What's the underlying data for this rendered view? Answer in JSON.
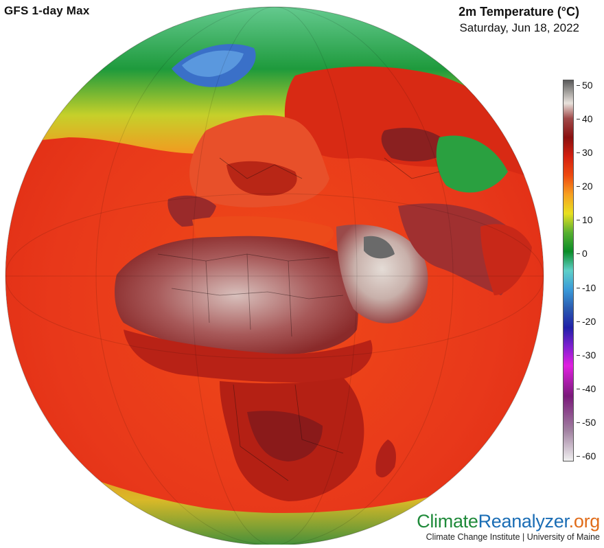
{
  "header": {
    "model_title": "GFS 1-day Max",
    "variable_title": "2m Temperature (°C)",
    "date": "Saturday, Jun 18, 2022"
  },
  "colorbar": {
    "labels": [
      "50",
      "40",
      "30",
      "20",
      "10",
      "0",
      "-10",
      "-20",
      "-30",
      "-40",
      "-50",
      "-60"
    ],
    "values": [
      50,
      40,
      30,
      20,
      10,
      0,
      -10,
      -20,
      -30,
      -40,
      -50,
      -60
    ],
    "colors": {
      "c50": "#5a5a5a",
      "c45": "#e8e2dc",
      "c40": "#a04a4a",
      "c35": "#8a1010",
      "c30": "#d42010",
      "c25": "#ee4a10",
      "c20": "#f7a020",
      "c15": "#e8e020",
      "c10": "#58b030",
      "c5": "#0a8c28",
      "c0": "#5fd0c8",
      "cm5": "#3a9ad8",
      "cm10": "#2a5ab0",
      "cm20": "#2020a8",
      "cm25": "#8020d0",
      "cm30": "#e020e0",
      "cm40": "#7a1a7a",
      "cm50": "#a080a0",
      "cm60": "#f0f0f0"
    }
  },
  "map": {
    "projection": "orthographic",
    "center_region": "Africa / Europe",
    "ocean_color": "#e83a18",
    "land_hot_color": "#8a2020",
    "desert_color": "#d8c4c0",
    "arctic_color": "#7ad09a",
    "greenland_color": "#3a70c8"
  },
  "branding": {
    "logo_part1": "Climate",
    "logo_part2": "Reanalyzer",
    "logo_part3": ".org",
    "subtitle": "Climate Change Institute | University of Maine"
  }
}
